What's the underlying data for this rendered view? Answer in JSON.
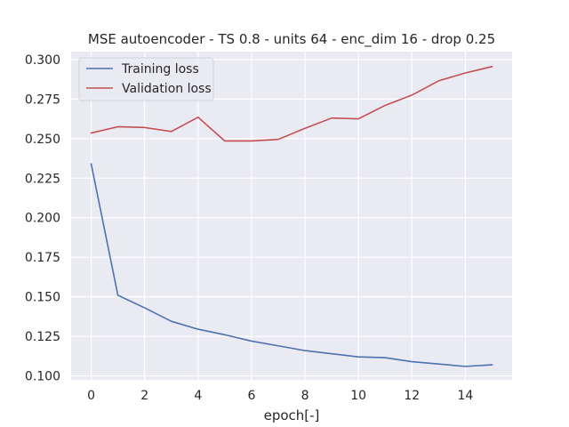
{
  "chart_data": {
    "type": "line",
    "title": "MSE autoencoder - TS 0.8 - units 64 - enc_dim 16 - drop 0.25",
    "xlabel": "epoch[-]",
    "ylabel": "",
    "x": [
      0,
      1,
      2,
      3,
      4,
      5,
      6,
      7,
      8,
      9,
      10,
      11,
      12,
      13,
      14,
      15
    ],
    "xlim": [
      -0.75,
      15.75
    ],
    "ylim": [
      0.0975,
      0.305
    ],
    "xticks": [
      0,
      2,
      4,
      6,
      8,
      10,
      12,
      14
    ],
    "xtick_labels": [
      "0",
      "2",
      "4",
      "6",
      "8",
      "10",
      "12",
      "14"
    ],
    "yticks": [
      0.1,
      0.125,
      0.15,
      0.175,
      0.2,
      0.225,
      0.25,
      0.275,
      0.3
    ],
    "ytick_labels": [
      "0.100",
      "0.125",
      "0.150",
      "0.175",
      "0.200",
      "0.225",
      "0.250",
      "0.275",
      "0.300"
    ],
    "grid": true,
    "legend_position": "top-left",
    "background": "#eaeaf2",
    "series": [
      {
        "name": "Training loss",
        "color": "#4c72b0",
        "values": [
          0.234,
          0.151,
          0.143,
          0.1345,
          0.1295,
          0.126,
          0.122,
          0.119,
          0.116,
          0.114,
          0.112,
          0.1115,
          0.109,
          0.1075,
          0.106,
          0.107
        ]
      },
      {
        "name": "Validation loss",
        "color": "#c44e52",
        "values": [
          0.2535,
          0.2575,
          0.257,
          0.2545,
          0.2635,
          0.2485,
          0.2485,
          0.2495,
          0.2565,
          0.263,
          0.2625,
          0.271,
          0.2775,
          0.2865,
          0.2915,
          0.2955
        ]
      }
    ]
  }
}
